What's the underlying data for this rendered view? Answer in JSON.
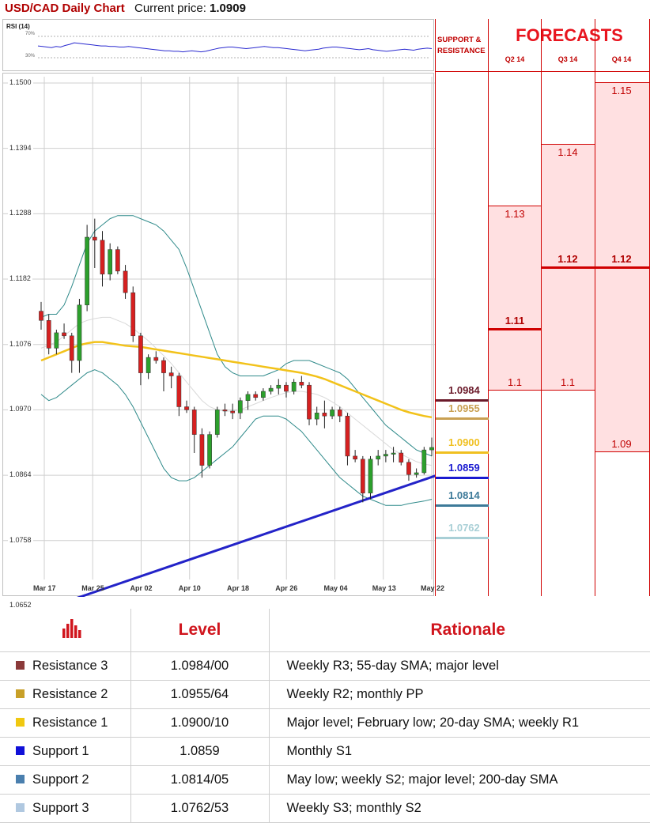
{
  "header": {
    "title": "USD/CAD Daily Chart",
    "price_label": "Current price:",
    "price_value": "1.0909"
  },
  "rsi": {
    "title": "RSI (14)",
    "ticks": [
      "70%",
      "30%"
    ],
    "ticks_values": [
      70,
      30
    ],
    "values": [
      52,
      51,
      50,
      49,
      51,
      50,
      53,
      55,
      58,
      57,
      56,
      55,
      54,
      53,
      52,
      52,
      51,
      51,
      50,
      50,
      51,
      50,
      49,
      48,
      47,
      46,
      45,
      44,
      43,
      43,
      42,
      42,
      41,
      42,
      43,
      42,
      41,
      42,
      44,
      46,
      48,
      49,
      50,
      50,
      49,
      48,
      47,
      48,
      49,
      50,
      51,
      50,
      49,
      49,
      48,
      47,
      46,
      45,
      44,
      43,
      44,
      45,
      46,
      48,
      49,
      50,
      50,
      49,
      48,
      47,
      46,
      45,
      46,
      47,
      45,
      44,
      43,
      42,
      43,
      44,
      45,
      46,
      45,
      44,
      46,
      47,
      48,
      47
    ]
  },
  "support_resistance": {
    "title": "SUPPORT & RESISTANCE",
    "levels": [
      {
        "value": 1.0984,
        "label": "1.0984",
        "color": "#6b1a2a"
      },
      {
        "value": 1.0955,
        "label": "1.0955",
        "color": "#c9a052"
      },
      {
        "value": 1.09,
        "label": "1.0900",
        "color": "#f0c020"
      },
      {
        "value": 1.0859,
        "label": "1.0859",
        "color": "#1a1ad0"
      },
      {
        "value": 1.0814,
        "label": "1.0814",
        "color": "#3d7a99"
      },
      {
        "value": 1.0762,
        "label": "1.0762",
        "color": "#a8cfd6"
      }
    ]
  },
  "forecasts": {
    "title": "FORECASTS",
    "quarters": [
      {
        "label": "Q2 14",
        "high": 1.13,
        "mid": 1.11,
        "low": 1.1,
        "high_label": "1.13",
        "mid_label": "1.11",
        "low_label": "1.1"
      },
      {
        "label": "Q3 14",
        "high": 1.14,
        "mid": 1.12,
        "low": 1.1,
        "high_label": "1.14",
        "mid_label": "1.12",
        "low_label": "1.1"
      },
      {
        "label": "Q4 14",
        "high": 1.15,
        "mid": 1.12,
        "low": 1.09,
        "high_label": "1.15",
        "mid_label": "1.12",
        "low_label": "1.09"
      }
    ]
  },
  "chart_data": {
    "type": "candlestick",
    "title": "USD/CAD Daily Chart",
    "y_ticks": [
      1.15,
      1.1394,
      1.1288,
      1.1182,
      1.1076,
      1.097,
      1.0864,
      1.0758,
      1.0652
    ],
    "y_tick_labels": [
      "1.1500",
      "1.1394",
      "1.1288",
      "1.1182",
      "1.1076",
      "1.0970",
      "1.0864",
      "1.0758",
      "1.0652"
    ],
    "ylim": [
      1.062,
      1.15
    ],
    "x_labels": [
      "Mar 17",
      "Mar 25",
      "Apr 02",
      "Apr 10",
      "Apr 18",
      "Apr 26",
      "May 04",
      "May 13",
      "May 22"
    ],
    "grid": true,
    "candles": [
      [
        1.113,
        1.1145,
        1.11,
        1.1115
      ],
      [
        1.1115,
        1.1125,
        1.106,
        1.107
      ],
      [
        1.107,
        1.11,
        1.106,
        1.1095
      ],
      [
        1.1095,
        1.111,
        1.1085,
        1.109
      ],
      [
        1.109,
        1.1095,
        1.103,
        1.105
      ],
      [
        1.105,
        1.115,
        1.103,
        1.114
      ],
      [
        1.114,
        1.127,
        1.113,
        1.125
      ],
      [
        1.125,
        1.128,
        1.12,
        1.1245
      ],
      [
        1.1245,
        1.126,
        1.117,
        1.119
      ],
      [
        1.119,
        1.124,
        1.118,
        1.123
      ],
      [
        1.123,
        1.1235,
        1.119,
        1.1195
      ],
      [
        1.1195,
        1.1205,
        1.115,
        1.116
      ],
      [
        1.116,
        1.117,
        1.108,
        1.109
      ],
      [
        1.109,
        1.1095,
        1.101,
        1.103
      ],
      [
        1.103,
        1.106,
        1.102,
        1.1055
      ],
      [
        1.1055,
        1.1065,
        1.1045,
        1.105
      ],
      [
        1.105,
        1.1055,
        1.1,
        1.103
      ],
      [
        1.103,
        1.104,
        1.1005,
        1.1025
      ],
      [
        1.1025,
        1.103,
        1.096,
        1.0975
      ],
      [
        1.0975,
        1.0985,
        1.0965,
        1.097
      ],
      [
        1.097,
        1.0975,
        1.09,
        1.093
      ],
      [
        1.093,
        1.094,
        1.086,
        1.088
      ],
      [
        1.088,
        1.0935,
        1.0875,
        1.093
      ],
      [
        1.093,
        1.0975,
        1.0925,
        1.097
      ],
      [
        1.097,
        1.098,
        1.096,
        1.0968
      ],
      [
        1.0968,
        1.098,
        1.0955,
        1.0965
      ],
      [
        1.0965,
        1.099,
        1.0955,
        1.0985
      ],
      [
        1.0985,
        1.1,
        1.097,
        1.0995
      ],
      [
        1.0995,
        1.1,
        1.0985,
        1.099
      ],
      [
        1.099,
        1.1005,
        1.0985,
        1.1
      ],
      [
        1.1,
        1.101,
        1.0995,
        1.1005
      ],
      [
        1.1005,
        1.102,
        1.0995,
        1.101
      ],
      [
        1.101,
        1.1015,
        1.099,
        1.1
      ],
      [
        1.1,
        1.102,
        1.0995,
        1.1015
      ],
      [
        1.1015,
        1.1025,
        1.1005,
        1.101
      ],
      [
        1.101,
        1.1015,
        1.0945,
        1.0955
      ],
      [
        1.0955,
        1.0975,
        1.0945,
        1.0965
      ],
      [
        1.0965,
        1.0985,
        1.094,
        1.096
      ],
      [
        1.096,
        1.0975,
        1.0955,
        1.097
      ],
      [
        1.097,
        1.0975,
        1.095,
        1.096
      ],
      [
        1.096,
        1.0965,
        1.088,
        1.0895
      ],
      [
        1.0895,
        1.0905,
        1.0885,
        1.089
      ],
      [
        1.089,
        1.0895,
        1.082,
        1.0835
      ],
      [
        1.0835,
        1.0895,
        1.0825,
        1.089
      ],
      [
        1.089,
        1.0905,
        1.088,
        1.0895
      ],
      [
        1.0895,
        1.0905,
        1.0885,
        1.0898
      ],
      [
        1.0898,
        1.091,
        1.0885,
        1.09
      ],
      [
        1.09,
        1.0905,
        1.088,
        1.0885
      ],
      [
        1.0885,
        1.089,
        1.0855,
        1.0865
      ],
      [
        1.0865,
        1.0875,
        1.086,
        1.0868
      ],
      [
        1.0868,
        1.091,
        1.0865,
        1.0905
      ],
      [
        1.0905,
        1.0925,
        1.0895,
        1.0909
      ]
    ],
    "bollinger_upper": [
      1.112,
      1.1125,
      1.1125,
      1.114,
      1.117,
      1.1205,
      1.124,
      1.126,
      1.127,
      1.128,
      1.1285,
      1.1285,
      1.1285,
      1.128,
      1.1275,
      1.127,
      1.126,
      1.1245,
      1.123,
      1.12,
      1.1165,
      1.113,
      1.1095,
      1.106,
      1.104,
      1.103,
      1.1025,
      1.1025,
      1.1025,
      1.1025,
      1.103,
      1.1035,
      1.1045,
      1.105,
      1.105,
      1.105,
      1.1045,
      1.104,
      1.1035,
      1.103,
      1.102,
      1.1005,
      1.099,
      1.0975,
      1.096,
      1.0945,
      1.0935,
      1.0925,
      1.0915,
      1.0905,
      1.09,
      1.0895
    ],
    "bollinger_lower": [
      1.0995,
      1.0985,
      1.099,
      1.1,
      1.101,
      1.102,
      1.103,
      1.1035,
      1.103,
      1.102,
      1.101,
      1.0995,
      1.0975,
      1.095,
      1.0925,
      1.09,
      1.0875,
      1.086,
      1.0855,
      1.0855,
      1.086,
      1.087,
      1.088,
      1.089,
      1.09,
      1.091,
      1.0925,
      1.094,
      1.0955,
      1.096,
      1.096,
      1.096,
      1.0955,
      1.0945,
      1.0935,
      1.092,
      1.0905,
      1.089,
      1.0875,
      1.086,
      1.085,
      1.084,
      1.083,
      1.0825,
      1.082,
      1.0815,
      1.0815,
      1.0815,
      1.0818,
      1.082,
      1.0822,
      1.0825
    ],
    "sma_yellow": [
      1.105,
      1.1055,
      1.106,
      1.1065,
      1.107,
      1.1075,
      1.1078,
      1.108,
      1.108,
      1.1078,
      1.1076,
      1.1074,
      1.1073,
      1.1072,
      1.107,
      1.1068,
      1.1066,
      1.1064,
      1.1062,
      1.106,
      1.1058,
      1.1056,
      1.1054,
      1.1052,
      1.105,
      1.1048,
      1.1046,
      1.1044,
      1.1042,
      1.104,
      1.1038,
      1.1036,
      1.1034,
      1.1032,
      1.103,
      1.1027,
      1.1024,
      1.102,
      1.1015,
      1.101,
      1.1005,
      1.1,
      1.0995,
      1.099,
      1.0985,
      1.098,
      1.0975,
      1.097,
      1.0966,
      1.0963,
      1.096,
      1.0958
    ],
    "sma_gray": [
      1.107,
      1.1075,
      1.108,
      1.109,
      1.11,
      1.111,
      1.1115,
      1.1118,
      1.112,
      1.112,
      1.1115,
      1.111,
      1.1102,
      1.1092,
      1.1082,
      1.107,
      1.1058,
      1.1045,
      1.103,
      1.1015,
      1.1,
      1.0985,
      1.0975,
      1.097,
      1.0968,
      1.0968,
      1.097,
      1.0975,
      1.098,
      1.0985,
      1.099,
      1.0994,
      1.0998,
      1.1,
      1.1,
      1.0998,
      1.0995,
      1.099,
      1.0983,
      1.0975,
      1.0965,
      1.0955,
      1.0945,
      1.0935,
      1.0925,
      1.0915,
      1.0905,
      1.0898,
      1.0892,
      1.0886,
      1.0882,
      1.088
    ],
    "trendline": [
      [
        0,
        1.0645
      ],
      [
        51,
        1.0862
      ]
    ]
  },
  "legend": {
    "headers": {
      "level": "Level",
      "rationale": "Rationale"
    },
    "icon": "bar-chart-icon",
    "rows": [
      {
        "name": "Resistance 3",
        "level": "1.0984/00",
        "rationale": "Weekly R3; 55-day SMA; major level",
        "color": "#8b3a3a"
      },
      {
        "name": "Resistance 2",
        "level": "1.0955/64",
        "rationale": "Weekly R2; monthly PP",
        "color": "#c8a028"
      },
      {
        "name": "Resistance 1",
        "level": "1.0900/10",
        "rationale": "Major level; February low; 20-day SMA; weekly R1",
        "color": "#f0c810"
      },
      {
        "name": "Support 1",
        "level": "1.0859",
        "rationale": "Monthly S1",
        "color": "#1010d8"
      },
      {
        "name": "Support 2",
        "level": "1.0814/05",
        "rationale": "May low; weekly S2; major level; 200-day SMA",
        "color": "#4a7fae"
      },
      {
        "name": "Support 3",
        "level": "1.0762/53",
        "rationale": "Weekly S3; monthly S2",
        "color": "#b0c8e0"
      }
    ]
  }
}
